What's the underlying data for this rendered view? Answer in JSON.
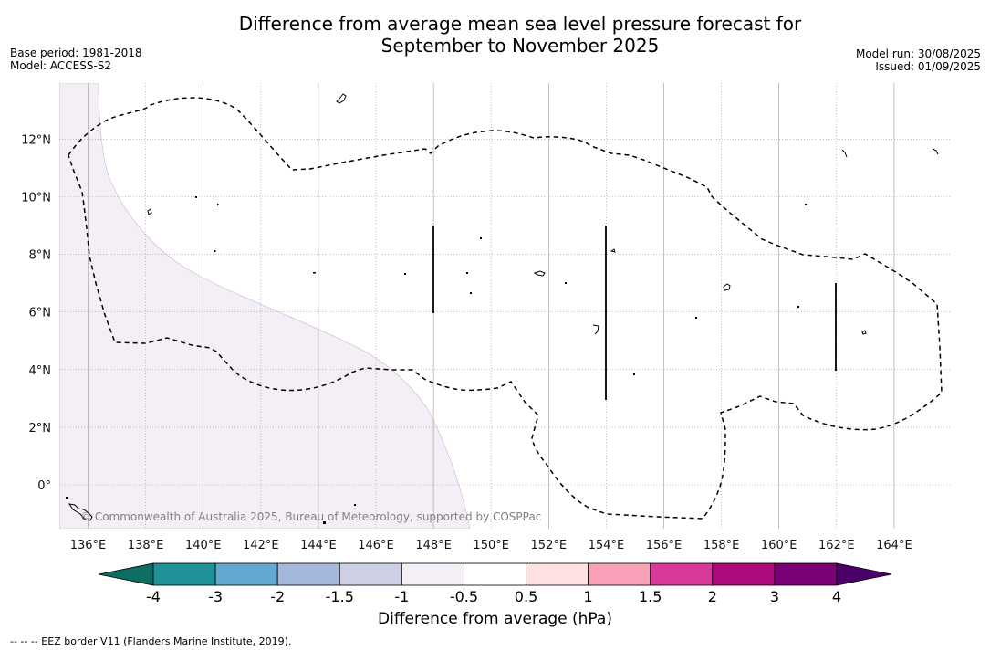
{
  "title_line1": "Difference from average mean sea level pressure forecast for",
  "title_line2": "September to November 2025",
  "base_period": "Base period: 1981-2018",
  "model": "Model: ACCESS-S2",
  "model_run": "Model run: 30/08/2025",
  "issued": "Issued: 01/09/2025",
  "copyright": "© Commonwealth of Australia 2025, Bureau of Meteorology, supported by COSPPac",
  "footer": "--  --  -- EEZ border V11 (Flanders Marine Institute, 2019).",
  "colorbar_title": "Difference from average (hPa)",
  "colorbar": {
    "ticks": [
      "-4",
      "-3",
      "-2",
      "-1.5",
      "-1",
      "-0.5",
      "0.5",
      "1",
      "1.5",
      "2",
      "3",
      "4"
    ],
    "colors": [
      "#0f6e63",
      "#1f9199",
      "#62a9d1",
      "#a4b8db",
      "#cdd0e5",
      "#f4eef6",
      "#ffffff",
      "#fde0df",
      "#f8a1b8",
      "#d8399b",
      "#ad0a7c",
      "#7a0175",
      "#4b0069"
    ]
  },
  "map": {
    "lon_range": [
      135,
      166
    ],
    "lat_range": [
      -1.5,
      14
    ],
    "lon_ticks": [
      "136°E",
      "138°E",
      "140°E",
      "142°E",
      "144°E",
      "146°E",
      "148°E",
      "150°E",
      "152°E",
      "154°E",
      "156°E",
      "158°E",
      "160°E",
      "162°E",
      "164°E"
    ],
    "lat_ticks": [
      "12°N",
      "10°N",
      "8°N",
      "6°N",
      "4°N",
      "2°N",
      "0°"
    ],
    "shaded_region": {
      "category": "-1 to -0.5",
      "color": "#f4eef6"
    },
    "eez_style": "dashed"
  }
}
